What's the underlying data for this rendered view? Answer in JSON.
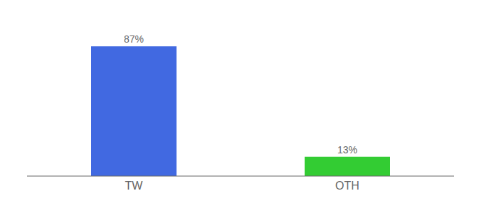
{
  "chart_data": {
    "type": "bar",
    "categories": [
      "TW",
      "OTH"
    ],
    "values": [
      87,
      13
    ],
    "value_labels": [
      "87%",
      "13%"
    ],
    "colors": [
      "#4169e1",
      "#33cc33"
    ],
    "ylim": [
      0,
      100
    ],
    "data_labels": true,
    "tick_labels": "x",
    "grid": false
  }
}
